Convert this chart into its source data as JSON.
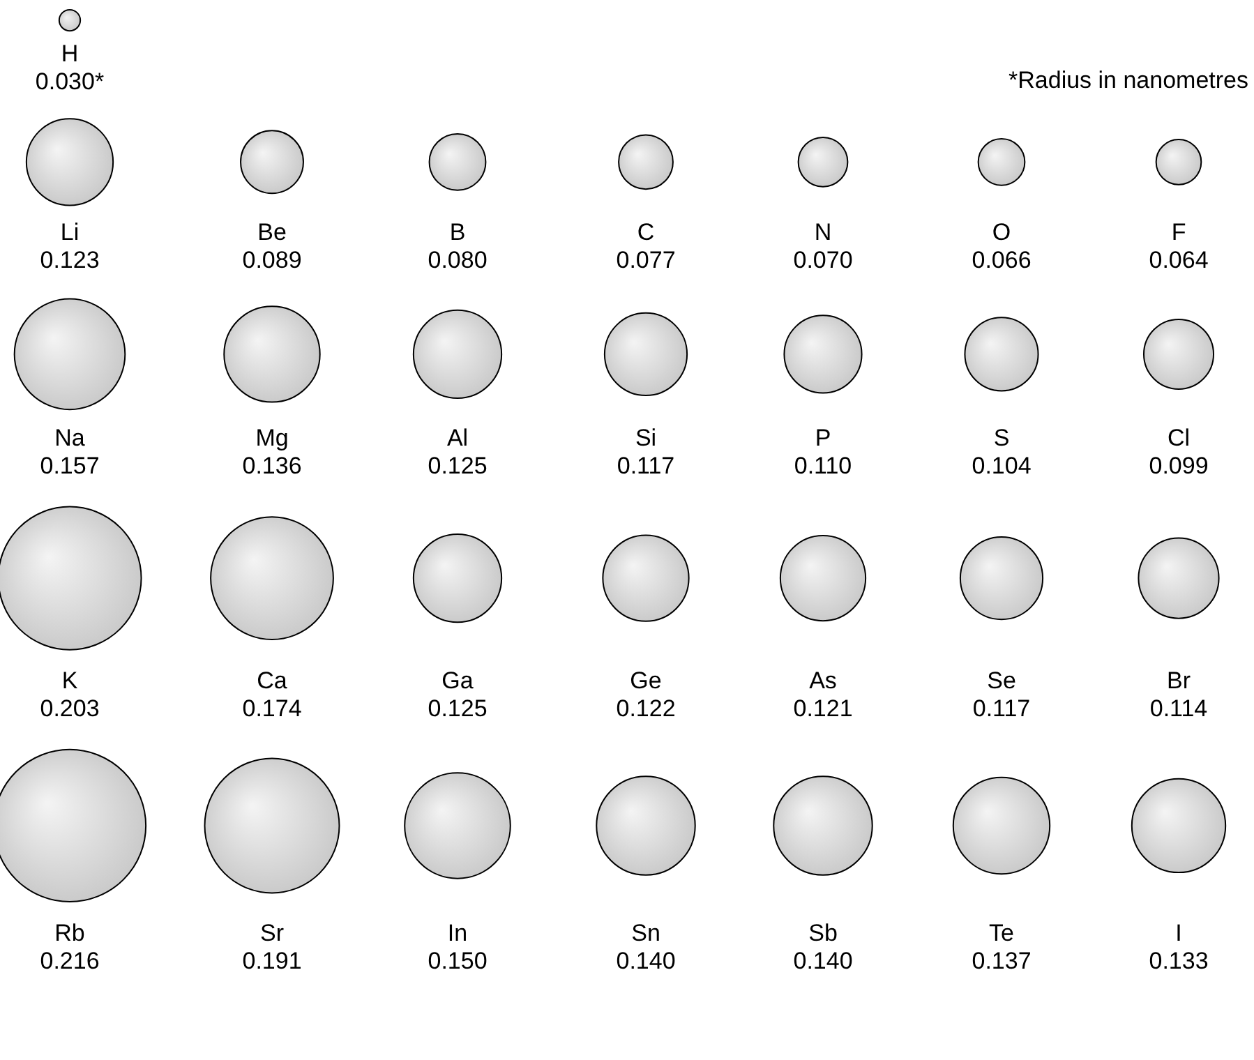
{
  "chart_data": {
    "type": "other",
    "categories": [
      "H",
      "Li",
      "Be",
      "B",
      "C",
      "N",
      "O",
      "F",
      "Na",
      "Mg",
      "Al",
      "Si",
      "P",
      "S",
      "Cl",
      "K",
      "Ca",
      "Ga",
      "Ge",
      "As",
      "Se",
      "Br",
      "Rb",
      "Sr",
      "In",
      "Sn",
      "Sb",
      "Te",
      "I"
    ],
    "values": [
      0.03,
      0.123,
      0.089,
      0.08,
      0.077,
      0.07,
      0.066,
      0.064,
      0.157,
      0.136,
      0.125,
      0.117,
      0.11,
      0.104,
      0.099,
      0.203,
      0.174,
      0.125,
      0.122,
      0.121,
      0.117,
      0.114,
      0.216,
      0.191,
      0.15,
      0.14,
      0.14,
      0.137,
      0.133
    ],
    "value_labels": [
      "0.030*",
      "0.123",
      "0.089",
      "0.080",
      "0.077",
      "0.070",
      "0.066",
      "0.064",
      "0.157",
      "0.136",
      "0.125",
      "0.117",
      "0.110",
      "0.104",
      "0.099",
      "0.203",
      "0.174",
      "0.125",
      "0.122",
      "0.121",
      "0.117",
      "0.114",
      "0.216",
      "0.191",
      "0.150",
      "0.140",
      "0.140",
      "0.137",
      "0.133"
    ],
    "color": "#c4c4c4",
    "annotations": [
      "*Radius in nanometres"
    ]
  }
}
